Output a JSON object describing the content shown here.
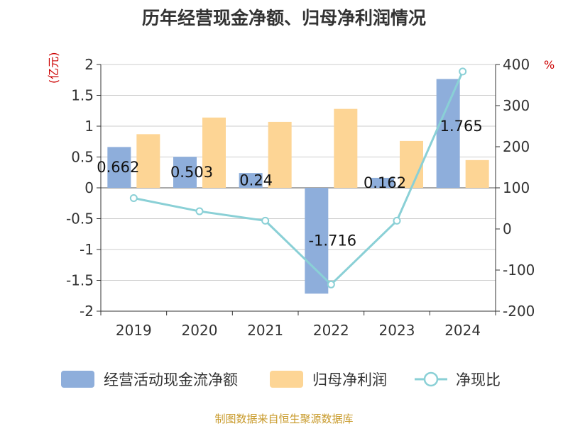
{
  "title": "历年经营现金净额、归母净利润情况",
  "left_unit": "(亿元)",
  "right_unit": "%",
  "source": "制图数据来自恒生聚源数据库",
  "chart_data": {
    "type": "bar",
    "categories": [
      "2019",
      "2020",
      "2021",
      "2022",
      "2023",
      "2024"
    ],
    "series": [
      {
        "name": "经营活动现金流净额",
        "type": "bar",
        "axis": "left",
        "values": [
          0.662,
          0.503,
          0.24,
          -1.716,
          0.162,
          1.765
        ],
        "labels": [
          "0.662",
          "0.503",
          "0.24",
          "-1.716",
          "0.162",
          "1.765"
        ],
        "color": "#8eaedb"
      },
      {
        "name": "归母净利润",
        "type": "bar",
        "axis": "left",
        "values": [
          0.87,
          1.14,
          1.07,
          1.28,
          0.76,
          0.45
        ],
        "color": "#fdd595"
      },
      {
        "name": "净现比",
        "type": "line",
        "axis": "right",
        "values": [
          75,
          43,
          20,
          -135,
          20,
          383
        ],
        "color": "#8ad0d6"
      }
    ],
    "left_axis": {
      "min": -2,
      "max": 2,
      "ticks": [
        "-2",
        "-1.5",
        "-1",
        "-0.5",
        "0",
        "0.5",
        "1",
        "1.5",
        "2"
      ]
    },
    "right_axis": {
      "min": -200,
      "max": 400,
      "ticks": [
        "-200",
        "-100",
        "0",
        "100",
        "200",
        "300",
        "400"
      ]
    },
    "grid": true,
    "legend_position": "bottom"
  }
}
